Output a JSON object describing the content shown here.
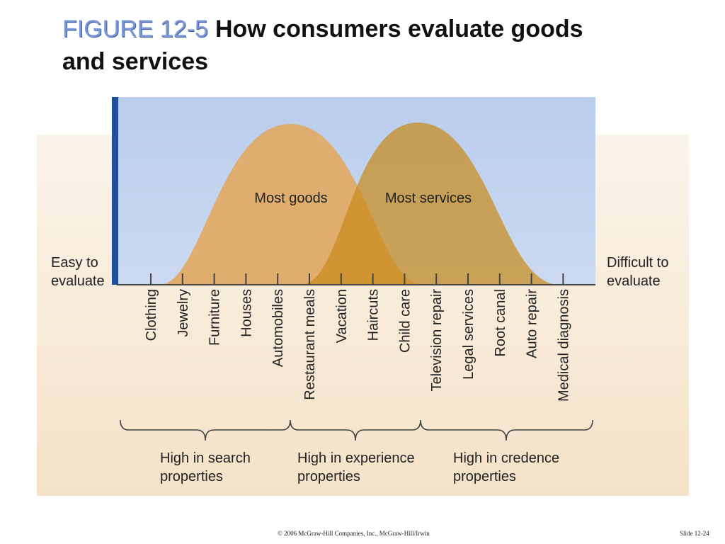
{
  "slide": {
    "figure_label": "FIGURE 12-5",
    "title": "How consumers evaluate goods and services",
    "footer_copyright": "© 2006 McGraw-Hill Companies, Inc., McGraw-Hill/Irwin",
    "footer_slide": "Slide 12-24"
  },
  "diagram": {
    "curve_goods_label": "Most goods",
    "curve_services_label": "Most services",
    "left_end_line1": "Easy to",
    "left_end_line2": "evaluate",
    "right_end_line1": "Difficult to",
    "right_end_line2": "evaluate",
    "items": [
      "Clothing",
      "Jewelry",
      "Furniture",
      "Houses",
      "Automobiles",
      "Restaurant meals",
      "Vacation",
      "Haircuts",
      "Child care",
      "Television repair",
      "Legal services",
      "Root canal",
      "Auto repair",
      "Medical diagnosis"
    ],
    "groups": [
      {
        "line1": "High in search",
        "line2": "properties"
      },
      {
        "line1": "High in experience",
        "line2": "properties"
      },
      {
        "line1": "High in credence",
        "line2": "properties"
      }
    ]
  },
  "colors": {
    "figure_label": "#7a96d4",
    "sky": "#c2d4ee",
    "axis_bar": "#1f4f9a",
    "goods_curve": "#e2a964",
    "services_curve": "#c98a1c",
    "background_band": "#f7ead6"
  }
}
